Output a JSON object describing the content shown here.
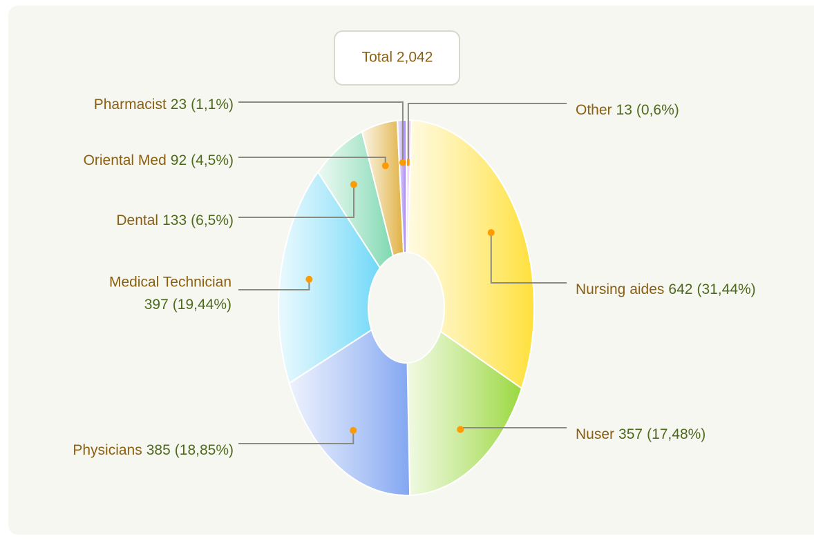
{
  "chart_data": {
    "type": "pie",
    "total_label": "Total 2,042",
    "categories": [
      "Other",
      "Nursing aides",
      "Nuser",
      "Physicians",
      "Medical Technician",
      "Dental",
      "Oriental Med",
      "Pharmacist"
    ],
    "values": [
      13,
      642,
      357,
      385,
      397,
      133,
      92,
      23
    ],
    "percent_labels": [
      "(0,6%)",
      "(31,44%)",
      "(17,48%)",
      "(18,85%)",
      "(19,44%)",
      "(6,5%)",
      "(4,5%)",
      "(1,1%)"
    ],
    "colors": [
      "#e4b4f6",
      "#ffe03a",
      "#9ad83e",
      "#82a6f2",
      "#6fd8f8",
      "#7ed8b0",
      "#e0b040",
      "#a282f0"
    ]
  }
}
